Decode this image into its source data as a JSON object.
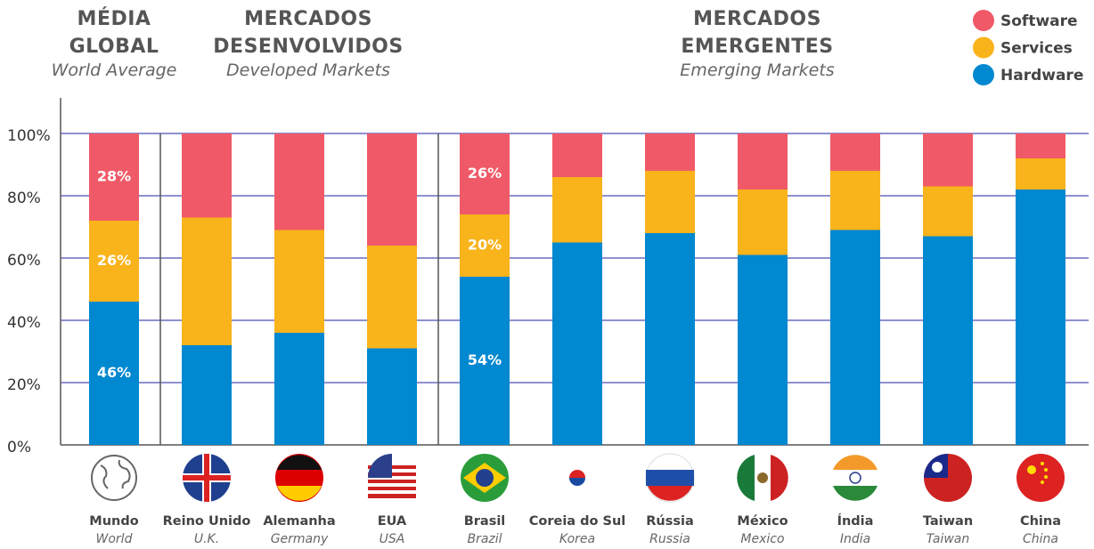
{
  "chart_data": {
    "type": "stacked_bar",
    "groups": [
      {
        "title": "MÉDIA GLOBAL",
        "subtitle": "World Average"
      },
      {
        "title": "MERCADOS DESENVOLVIDOS",
        "subtitle": "Developed Markets"
      },
      {
        "title": "MERCADOS EMERGENTES",
        "subtitle": "Emerging Markets"
      }
    ],
    "categories": [
      "Mundo",
      "Reino Unido",
      "Alemanha",
      "EUA",
      "Brasil",
      "Coreia do Sul",
      "Rússia",
      "México",
      "Índia",
      "Taiwan",
      "China"
    ],
    "categories_en": [
      "World",
      "U.K.",
      "Germany",
      "USA",
      "Brazil",
      "Korea",
      "Russia",
      "Mexico",
      "India",
      "Taiwan",
      "China"
    ],
    "series": [
      {
        "name": "Hardware",
        "color": "#0088d0",
        "values": [
          46,
          32,
          36,
          31,
          54,
          65,
          68,
          61,
          69,
          67,
          82
        ],
        "value_labels": [
          "46%",
          null,
          null,
          null,
          "54%",
          null,
          null,
          null,
          null,
          null,
          null
        ]
      },
      {
        "name": "Services",
        "color": "#f9b31b",
        "values": [
          26,
          41,
          33,
          33,
          20,
          21,
          20,
          21,
          19,
          16,
          10
        ],
        "value_labels": [
          "26%",
          null,
          null,
          null,
          "20%",
          null,
          null,
          null,
          null,
          null,
          null
        ]
      },
      {
        "name": "Software",
        "color": "#f05a68",
        "values": [
          28,
          27,
          31,
          36,
          26,
          14,
          12,
          18,
          12,
          17,
          8
        ],
        "value_labels": [
          "28%",
          null,
          null,
          null,
          "26%",
          null,
          null,
          null,
          null,
          null,
          null
        ]
      }
    ],
    "ylim": [
      0,
      100
    ],
    "yticks": [
      {
        "value": 0,
        "label": "0%"
      },
      {
        "value": 20,
        "label": "20%"
      },
      {
        "value": 40,
        "label": "40%"
      },
      {
        "value": 60,
        "label": "60%"
      },
      {
        "value": 80,
        "label": "80%"
      },
      {
        "value": 100,
        "label": "100%"
      }
    ],
    "grid": true,
    "legend": "top-right"
  }
}
